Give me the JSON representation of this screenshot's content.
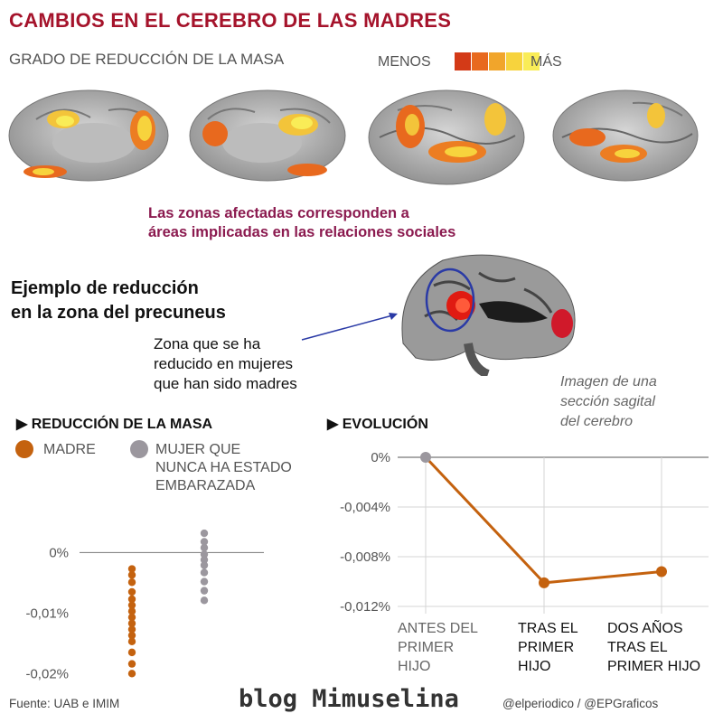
{
  "title": "CAMBIOS EN EL CEREBRO DE LAS MADRES",
  "subtitle": "GRADO DE REDUCCIÓN DE LA MASA",
  "legend": {
    "less": "MENOS",
    "more": "MÁS",
    "scale_colors": [
      "#d33a17",
      "#e8691e",
      "#f1a52b",
      "#f7d33d",
      "#f9ec57"
    ]
  },
  "zones_note": "Las zonas afectadas corresponden a\náreas implicadas en las relaciones sociales",
  "example_title": "Ejemplo de reducción\nen la zona del precuneus",
  "zone_note": "Zona que se ha\nreducido en mujeres\nque han sido madres",
  "sagittal_caption": "Imagen de una\nsección sagital\ndel cerebro",
  "colors": {
    "mother": "#c4620f",
    "non_mother": "#9b979e",
    "accent": "#a5132b"
  },
  "chart_data": [
    {
      "type": "scatter",
      "title": "REDUCCIÓN DE LA MASA",
      "legend_items": [
        {
          "label": "MADRE"
        },
        {
          "label": "MUJER QUE\nNUNCA HA ESTADO\nEMBARAZADA"
        }
      ],
      "yticks": [
        "0%",
        "-0,01%",
        "-0,02%"
      ],
      "ytick_values": [
        0,
        -0.01,
        -0.02
      ],
      "ylim": [
        -0.021,
        0.005
      ],
      "series": [
        {
          "name": "MADRE",
          "x": 0,
          "values": [
            -0.0027,
            -0.0037,
            -0.0049,
            -0.0065,
            -0.0077,
            -0.0087,
            -0.0097,
            -0.0107,
            -0.0117,
            -0.0127,
            -0.0137,
            -0.0147,
            -0.0165,
            -0.0184,
            -0.02
          ]
        },
        {
          "name": "MUJER QUE NUNCA HA ESTADO EMBARAZADA",
          "x": 1,
          "values": [
            0.0032,
            0.0018,
            0.0008,
            -0.0003,
            -0.0012,
            -0.0021,
            -0.0033,
            -0.0048,
            -0.0063,
            -0.0079
          ]
        }
      ]
    },
    {
      "type": "line",
      "title": "EVOLUCIÓN",
      "categories": [
        "ANTES DEL\nPRIMER\nHIJO",
        "TRAS EL\nPRIMER\nHIJO",
        "DOS AÑOS\nTRAS EL\nPRIMER HIJO"
      ],
      "values": [
        0,
        -0.0101,
        -0.0092
      ],
      "yticks": [
        "0%",
        "-0,004%",
        "-0,008%",
        "-0,012%"
      ],
      "ytick_values": [
        0,
        -0.004,
        -0.008,
        -0.012
      ],
      "ylim": [
        -0.012,
        0
      ],
      "point_colors": [
        "#9b979e",
        "#c4620f",
        "#c4620f"
      ]
    }
  ],
  "footer": {
    "source": "Fuente: UAB e IMIM",
    "handles": "@elperiodico / @EPGraficos"
  },
  "watermark": "blog Mimuselina"
}
